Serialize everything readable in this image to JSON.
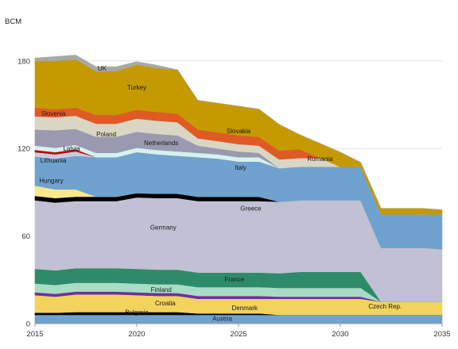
{
  "chart_data": {
    "type": "area",
    "ylabel": "BCM",
    "x": [
      2015,
      2016,
      2017,
      2018,
      2019,
      2020,
      2021,
      2022,
      2023,
      2024,
      2025,
      2026,
      2027,
      2028,
      2029,
      2030,
      2031,
      2032,
      2033,
      2034,
      2035
    ],
    "xticks": [
      2015,
      2020,
      2025,
      2030,
      2035
    ],
    "yticks": [
      0,
      60,
      120,
      180
    ],
    "ylim": [
      0,
      200
    ],
    "xlim": [
      2015,
      2035
    ],
    "grid": true,
    "series": [
      {
        "name": "Austria",
        "color": "#6fa2cf",
        "values": [
          6,
          6,
          6,
          6,
          6,
          6,
          6,
          6,
          6,
          6,
          6,
          6,
          6,
          6,
          6,
          6,
          6,
          6,
          6,
          6,
          6
        ]
      },
      {
        "name": "Bulgaria",
        "color": "#000000",
        "values": [
          1.5,
          1.5,
          2,
          2,
          2,
          2,
          2,
          2,
          1,
          1,
          1,
          1,
          0,
          0,
          0,
          0,
          0,
          0,
          0,
          0,
          0
        ]
      },
      {
        "name": "Czech Rep.",
        "color": "#f2d35b",
        "values": [
          0,
          0,
          0,
          0,
          0,
          0,
          0,
          0,
          0,
          0,
          0,
          0,
          9,
          9,
          9,
          9,
          9,
          9,
          9,
          9,
          9
        ]
      },
      {
        "name": "Croatia",
        "color": "#f2d35b",
        "values": [
          12,
          11,
          12,
          12,
          12,
          11.5,
          11,
          11,
          10,
          10,
          10,
          10,
          2,
          2,
          2,
          2,
          2,
          0,
          0,
          0,
          0
        ]
      },
      {
        "name": "Denmark",
        "color": "#7030a0",
        "values": [
          2,
          2,
          2,
          2,
          2,
          2,
          2,
          2,
          2,
          2,
          2,
          2,
          1.5,
          1.5,
          1.5,
          1.5,
          1.5,
          0,
          0,
          0,
          0
        ]
      },
      {
        "name": "Finland",
        "color": "#a9dcc5",
        "values": [
          6,
          6,
          6,
          6,
          6,
          6,
          6,
          6,
          6,
          6,
          6,
          6,
          6,
          6,
          6,
          6,
          6,
          0,
          0,
          0,
          0
        ]
      },
      {
        "name": "France",
        "color": "#2e8b6a",
        "values": [
          10,
          10,
          10,
          10,
          10,
          10,
          10,
          10,
          10,
          10,
          10,
          10,
          10,
          11,
          11,
          11,
          11,
          0,
          0,
          0,
          0
        ]
      },
      {
        "name": "Germany",
        "color": "#c2c0d4",
        "values": [
          47,
          46.5,
          46,
          46,
          46,
          49,
          49,
          49,
          49,
          49,
          49,
          49,
          49,
          49,
          49,
          49,
          49,
          37,
          37,
          37,
          36
        ]
      },
      {
        "name": "Greece",
        "color": "#000000",
        "values": [
          3,
          3,
          3,
          3,
          3,
          3,
          3,
          3,
          3,
          3,
          3,
          3,
          0,
          0,
          0,
          0,
          0,
          0,
          0,
          0,
          0
        ]
      },
      {
        "name": "Hungary",
        "color": "#fbe78e",
        "values": [
          7,
          6,
          5,
          0,
          0,
          0,
          0,
          0,
          0,
          0,
          0,
          0,
          0,
          0,
          0,
          0,
          0,
          0,
          0,
          0,
          0
        ]
      },
      {
        "name": "Italy",
        "color": "#6fa2cf",
        "values": [
          20,
          21,
          23,
          27,
          27,
          28,
          27,
          26,
          27,
          26,
          24,
          24,
          23,
          23,
          23,
          23,
          23,
          23,
          23,
          23,
          24
        ]
      },
      {
        "name": "Lithuania",
        "color": "#c8cce0",
        "values": [
          3,
          3,
          3,
          0,
          0,
          0,
          0,
          0,
          0,
          0,
          0,
          0,
          0,
          0,
          0,
          0,
          0,
          0,
          0,
          0,
          0
        ]
      },
      {
        "name": "Latvia",
        "color": "#c00000",
        "values": [
          1.5,
          1.5,
          1.5,
          0,
          0,
          0,
          0,
          0,
          0,
          0,
          0,
          0,
          0,
          0,
          0,
          0,
          0,
          0,
          0,
          0,
          0
        ]
      },
      {
        "name": "Netherlands",
        "color": "#d4f2ef",
        "values": [
          3,
          3,
          3,
          3,
          3,
          3,
          3,
          3,
          3,
          3,
          3,
          3,
          0,
          0,
          0,
          0,
          0,
          0,
          0,
          0,
          0
        ]
      },
      {
        "name": "Poland",
        "color": "#9999b0",
        "values": [
          11,
          12,
          11,
          11,
          11,
          11,
          11,
          11,
          5,
          4,
          4,
          3,
          0,
          0,
          0,
          0,
          0,
          0,
          0,
          0,
          0
        ]
      },
      {
        "name": "Romania",
        "color": "#d9d6c4",
        "values": [
          5,
          5,
          5,
          5,
          5,
          5,
          5,
          5,
          5,
          5,
          5,
          5,
          6,
          6,
          6,
          0,
          0,
          0,
          0,
          0,
          0
        ]
      },
      {
        "name": "Slovenia",
        "color": "#d9d6c4",
        "values": [
          4,
          4,
          4,
          4,
          4,
          4,
          4,
          4,
          0,
          0,
          0,
          0,
          0,
          0,
          0,
          0,
          0,
          0,
          0,
          0,
          0
        ]
      },
      {
        "name": "Slovakia",
        "color": "#e05a26",
        "values": [
          6,
          5.5,
          5.5,
          6,
          6,
          6,
          6,
          6,
          6,
          6,
          6,
          6,
          6,
          6,
          0,
          0,
          0,
          0,
          0,
          0,
          0
        ]
      },
      {
        "name": "Turkey",
        "color": "#c49a00",
        "values": [
          32,
          33,
          33,
          30,
          30,
          31,
          30,
          30,
          20,
          20,
          20,
          19,
          18,
          10,
          10,
          10,
          3,
          4,
          4,
          4,
          3
        ]
      },
      {
        "name": "UK",
        "color": "#a8a8a8",
        "values": [
          2,
          3,
          3,
          3,
          3,
          2,
          2,
          0,
          0,
          0,
          0,
          0,
          0,
          0,
          0,
          0,
          0,
          0,
          0,
          0,
          0
        ]
      }
    ],
    "annotations": [
      {
        "text": "Austria",
        "x": 2024.2,
        "y": 3.5
      },
      {
        "text": "Bulgaria",
        "x": 2020.0,
        "y": 8
      },
      {
        "text": "Czech Rep.",
        "x": 2032.2,
        "y": 12
      },
      {
        "text": "Croatia",
        "x": 2021.4,
        "y": 14
      },
      {
        "text": "Denmark",
        "x": 2025.3,
        "y": 11
      },
      {
        "text": "Finland",
        "x": 2021.2,
        "y": 23.5
      },
      {
        "text": "France",
        "x": 2024.8,
        "y": 30.5
      },
      {
        "text": "Germany",
        "x": 2021.3,
        "y": 66
      },
      {
        "text": "Greece",
        "x": 2025.6,
        "y": 79
      },
      {
        "text": "Hungary",
        "x": 2015.8,
        "y": 98
      },
      {
        "text": "Italy",
        "x": 2025.1,
        "y": 107
      },
      {
        "text": "Lithuania",
        "x": 2015.9,
        "y": 112
      },
      {
        "text": "Latvia",
        "x": 2016.8,
        "y": 120
      },
      {
        "text": "Netherlands",
        "x": 2021.2,
        "y": 124
      },
      {
        "text": "Poland",
        "x": 2018.5,
        "y": 130
      },
      {
        "text": "Romania",
        "x": 2029.0,
        "y": 113
      },
      {
        "text": "Slovenia",
        "x": 2015.9,
        "y": 144
      },
      {
        "text": "Slovakia",
        "x": 2025.0,
        "y": 132
      },
      {
        "text": "Turkey",
        "x": 2020.0,
        "y": 162
      },
      {
        "text": "UK",
        "x": 2018.3,
        "y": 175
      }
    ]
  }
}
